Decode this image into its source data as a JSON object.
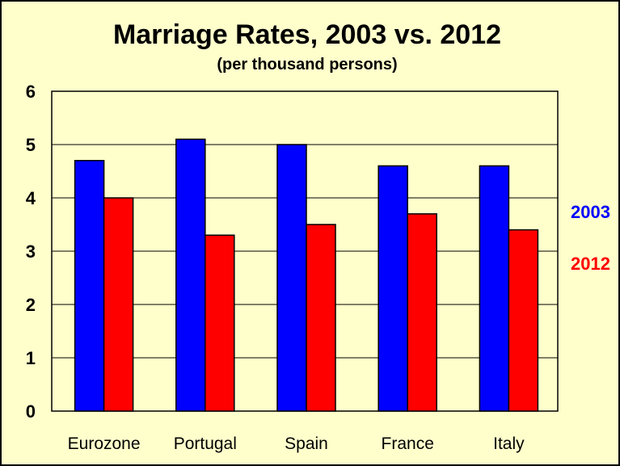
{
  "chart_data": {
    "type": "bar",
    "title": "Marriage Rates, 2003 vs. 2012",
    "subtitle": "(per thousand persons)",
    "categories": [
      "Eurozone",
      "Portugal",
      "Spain",
      "France",
      "Italy"
    ],
    "series": [
      {
        "name": "2003",
        "color": "#0000FF",
        "values": [
          4.7,
          5.1,
          5.0,
          4.6,
          4.6
        ]
      },
      {
        "name": "2012",
        "color": "#FF0000",
        "values": [
          4.0,
          3.3,
          3.5,
          3.7,
          3.4
        ]
      }
    ],
    "yticks": [
      "0",
      "1",
      "2",
      "3",
      "4",
      "5",
      "6"
    ],
    "ylim": [
      0,
      6
    ],
    "grid": true,
    "legend_position": "right",
    "background_color": "#FFFFCC"
  }
}
